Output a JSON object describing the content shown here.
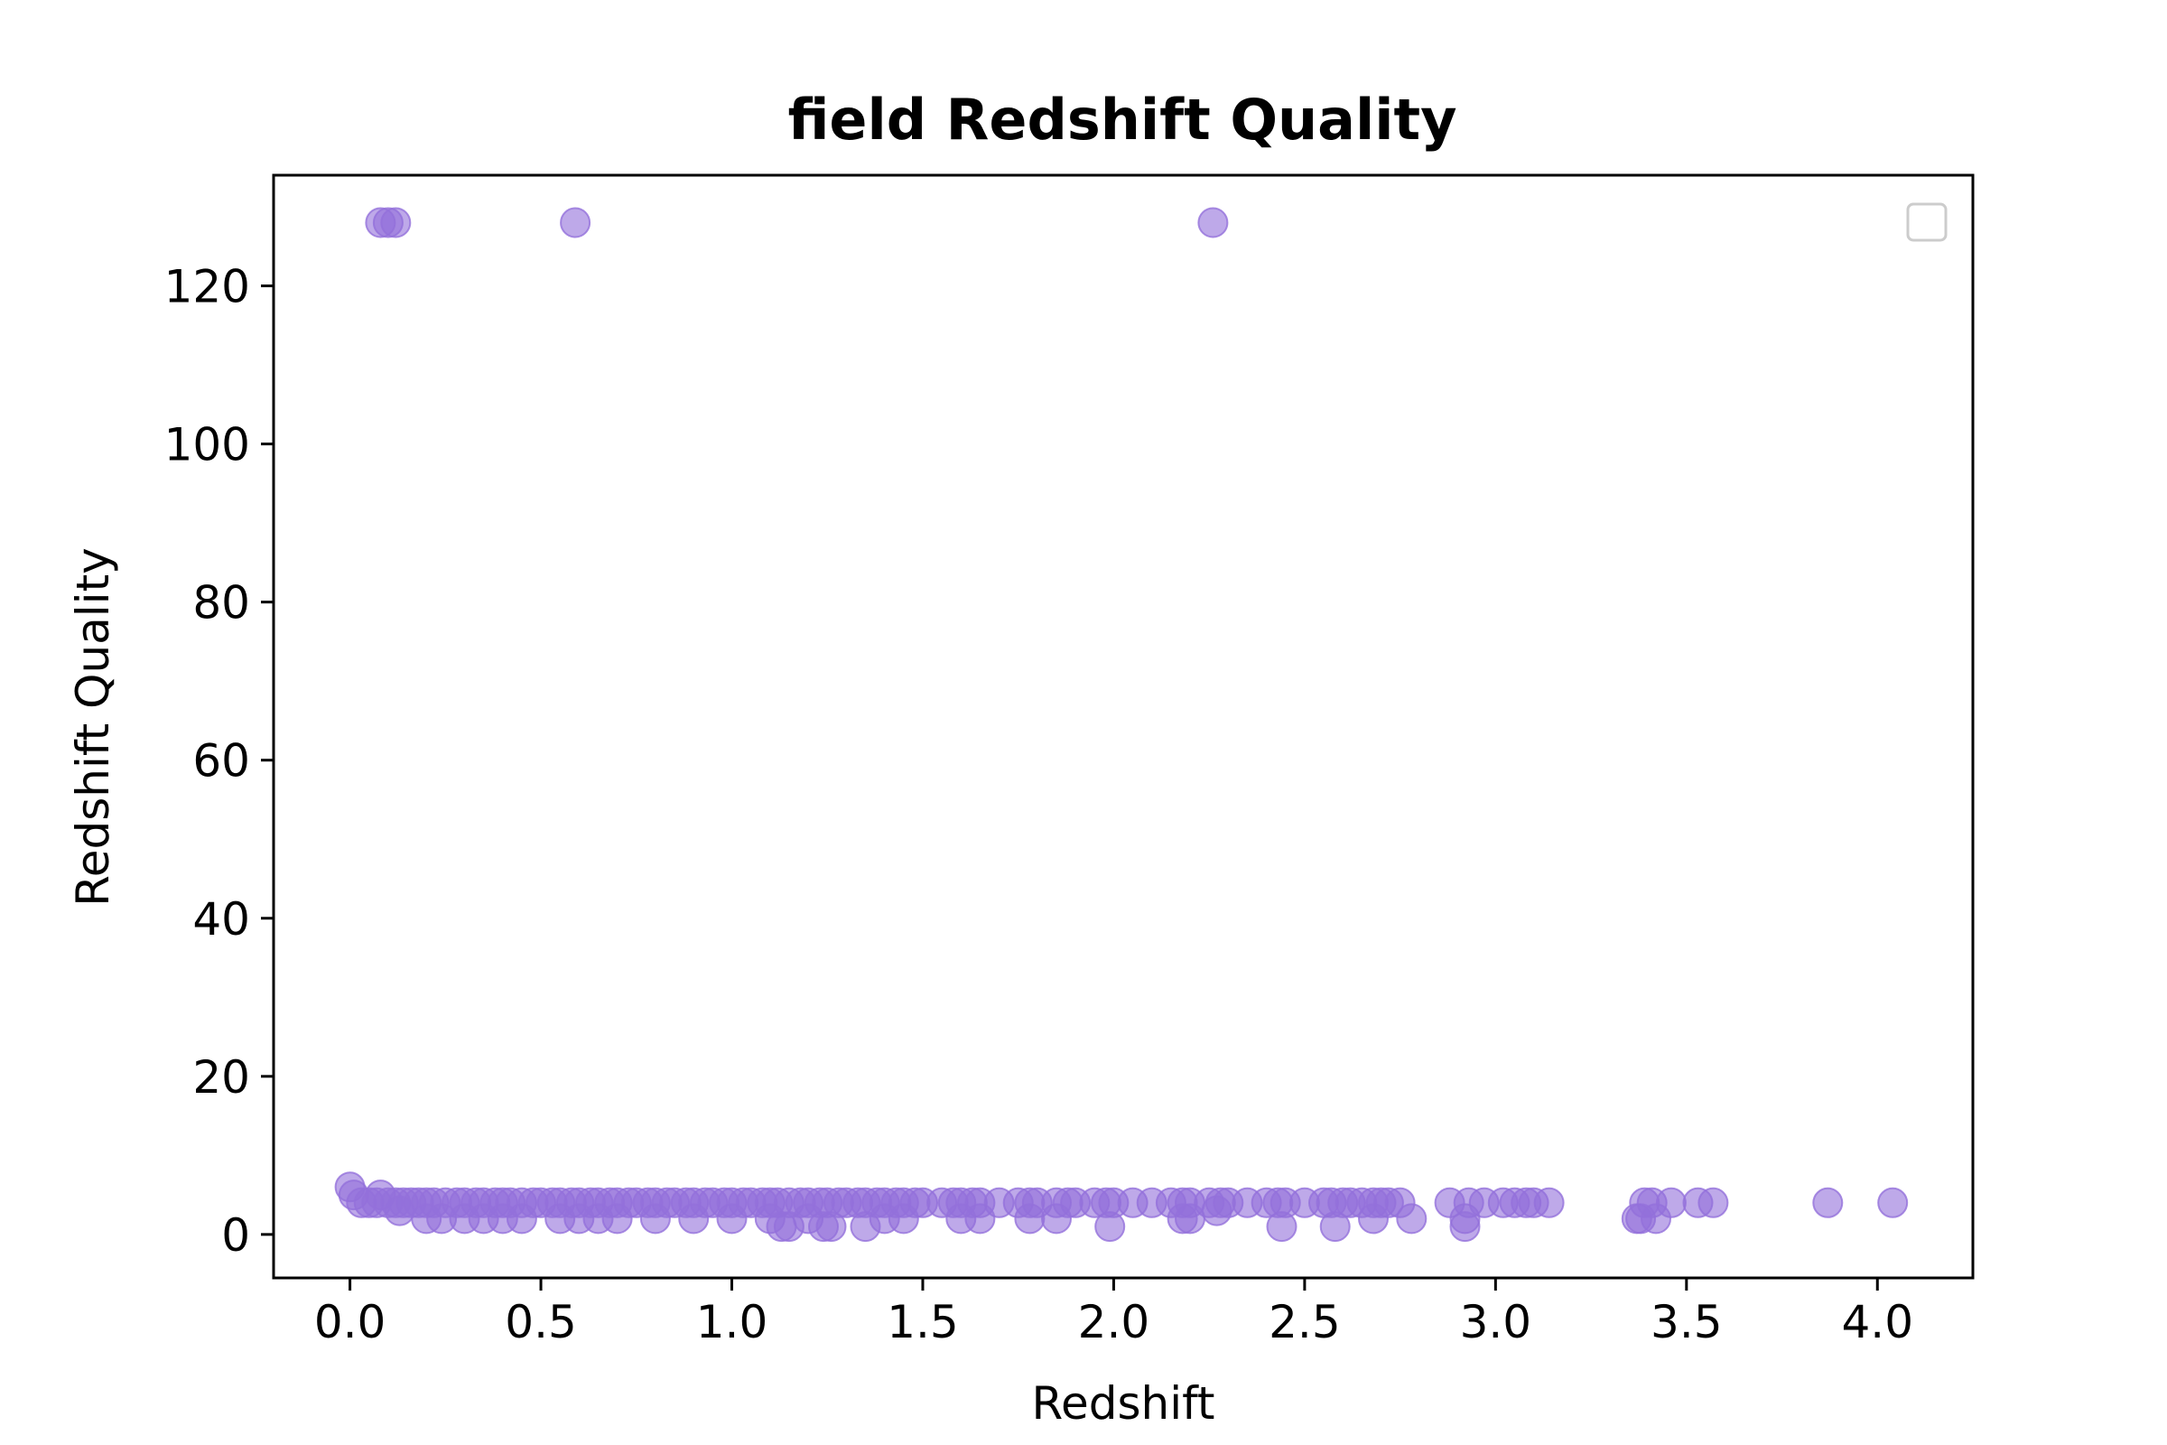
{
  "chart_data": {
    "type": "scatter",
    "title": "field Redshift Quality",
    "xlabel": "Redshift",
    "ylabel": "Redshift Quality",
    "xlim": [
      -0.2,
      4.25
    ],
    "ylim": [
      -5.5,
      134
    ],
    "xticks": [
      0.0,
      0.5,
      1.0,
      1.5,
      2.0,
      2.5,
      3.0,
      3.5,
      4.0
    ],
    "xtick_labels": [
      "0.0",
      "0.5",
      "1.0",
      "1.5",
      "2.0",
      "2.5",
      "3.0",
      "3.5",
      "4.0"
    ],
    "yticks": [
      0,
      20,
      40,
      60,
      80,
      100,
      120
    ],
    "ytick_labels": [
      "0",
      "20",
      "40",
      "60",
      "80",
      "100",
      "120"
    ],
    "grid": false,
    "legend": "top-right (empty)",
    "colors": {
      "marker": "#9370DB",
      "axes": "#000000",
      "legend_frame": "#cccccc"
    },
    "series": [
      {
        "x": [
          0.08,
          0.1,
          0.12,
          0.59,
          2.26,
          0.0,
          0.01,
          0.03,
          0.05,
          0.07,
          0.08,
          0.1,
          0.12,
          0.14,
          0.16,
          0.18,
          0.2,
          0.22,
          0.25,
          0.28,
          0.3,
          0.33,
          0.35,
          0.38,
          0.4,
          0.42,
          0.45,
          0.48,
          0.5,
          0.53,
          0.55,
          0.58,
          0.6,
          0.63,
          0.65,
          0.68,
          0.7,
          0.73,
          0.75,
          0.78,
          0.8,
          0.83,
          0.85,
          0.88,
          0.9,
          0.93,
          0.95,
          0.98,
          1.0,
          1.03,
          1.05,
          1.08,
          1.1,
          1.12,
          1.15,
          1.18,
          1.2,
          1.23,
          1.25,
          1.28,
          1.3,
          1.33,
          1.35,
          1.38,
          1.4,
          1.43,
          1.45,
          1.48,
          1.5,
          1.55,
          1.58,
          1.6,
          1.63,
          1.65,
          1.7,
          1.75,
          1.78,
          1.8,
          1.85,
          1.88,
          1.9,
          1.95,
          1.98,
          2.0,
          2.05,
          2.1,
          2.15,
          2.18,
          2.2,
          2.25,
          2.28,
          2.3,
          2.35,
          2.4,
          2.43,
          2.45,
          2.5,
          2.55,
          2.57,
          2.6,
          2.62,
          2.65,
          2.68,
          2.7,
          2.72,
          2.75,
          2.78,
          2.88,
          2.92,
          2.93,
          2.97,
          3.02,
          3.05,
          3.08,
          3.1,
          3.14,
          3.37,
          3.39,
          3.41,
          3.46,
          3.53,
          3.57,
          3.87,
          4.04,
          0.13,
          0.2,
          0.24,
          0.3,
          0.35,
          0.4,
          0.45,
          0.55,
          0.6,
          0.65,
          0.7,
          0.8,
          0.9,
          1.0,
          1.1,
          1.13,
          1.15,
          1.2,
          1.24,
          1.26,
          1.35,
          1.4,
          1.45,
          1.6,
          1.65,
          1.78,
          1.85,
          1.99,
          2.18,
          2.2,
          2.27,
          2.44,
          2.58,
          2.68,
          2.92,
          3.38,
          3.42
        ],
        "y": [
          128,
          128,
          128,
          128,
          128,
          6,
          5,
          4,
          4,
          4,
          5,
          4,
          4,
          4,
          4,
          4,
          4,
          4,
          4,
          4,
          4,
          4,
          4,
          4,
          4,
          4,
          4,
          4,
          4,
          4,
          4,
          4,
          4,
          4,
          4,
          4,
          4,
          4,
          4,
          4,
          4,
          4,
          4,
          4,
          4,
          4,
          4,
          4,
          4,
          4,
          4,
          4,
          4,
          4,
          4,
          4,
          4,
          4,
          4,
          4,
          4,
          4,
          4,
          4,
          4,
          4,
          4,
          4,
          4,
          4,
          4,
          4,
          4,
          4,
          4,
          4,
          4,
          4,
          4,
          4,
          4,
          4,
          4,
          4,
          4,
          4,
          4,
          4,
          4,
          4,
          4,
          4,
          4,
          4,
          4,
          4,
          4,
          4,
          4,
          4,
          4,
          4,
          4,
          4,
          4,
          4,
          2,
          4,
          2,
          4,
          4,
          4,
          4,
          4,
          4,
          4,
          2,
          4,
          4,
          4,
          4,
          4,
          4,
          4,
          3,
          2,
          2,
          2,
          2,
          2,
          2,
          2,
          2,
          2,
          2,
          2,
          2,
          2,
          2,
          1,
          1,
          2,
          1,
          1,
          1,
          2,
          2,
          2,
          2,
          2,
          2,
          1,
          2,
          2,
          3,
          1,
          1,
          2,
          1,
          2,
          2
        ]
      }
    ]
  }
}
